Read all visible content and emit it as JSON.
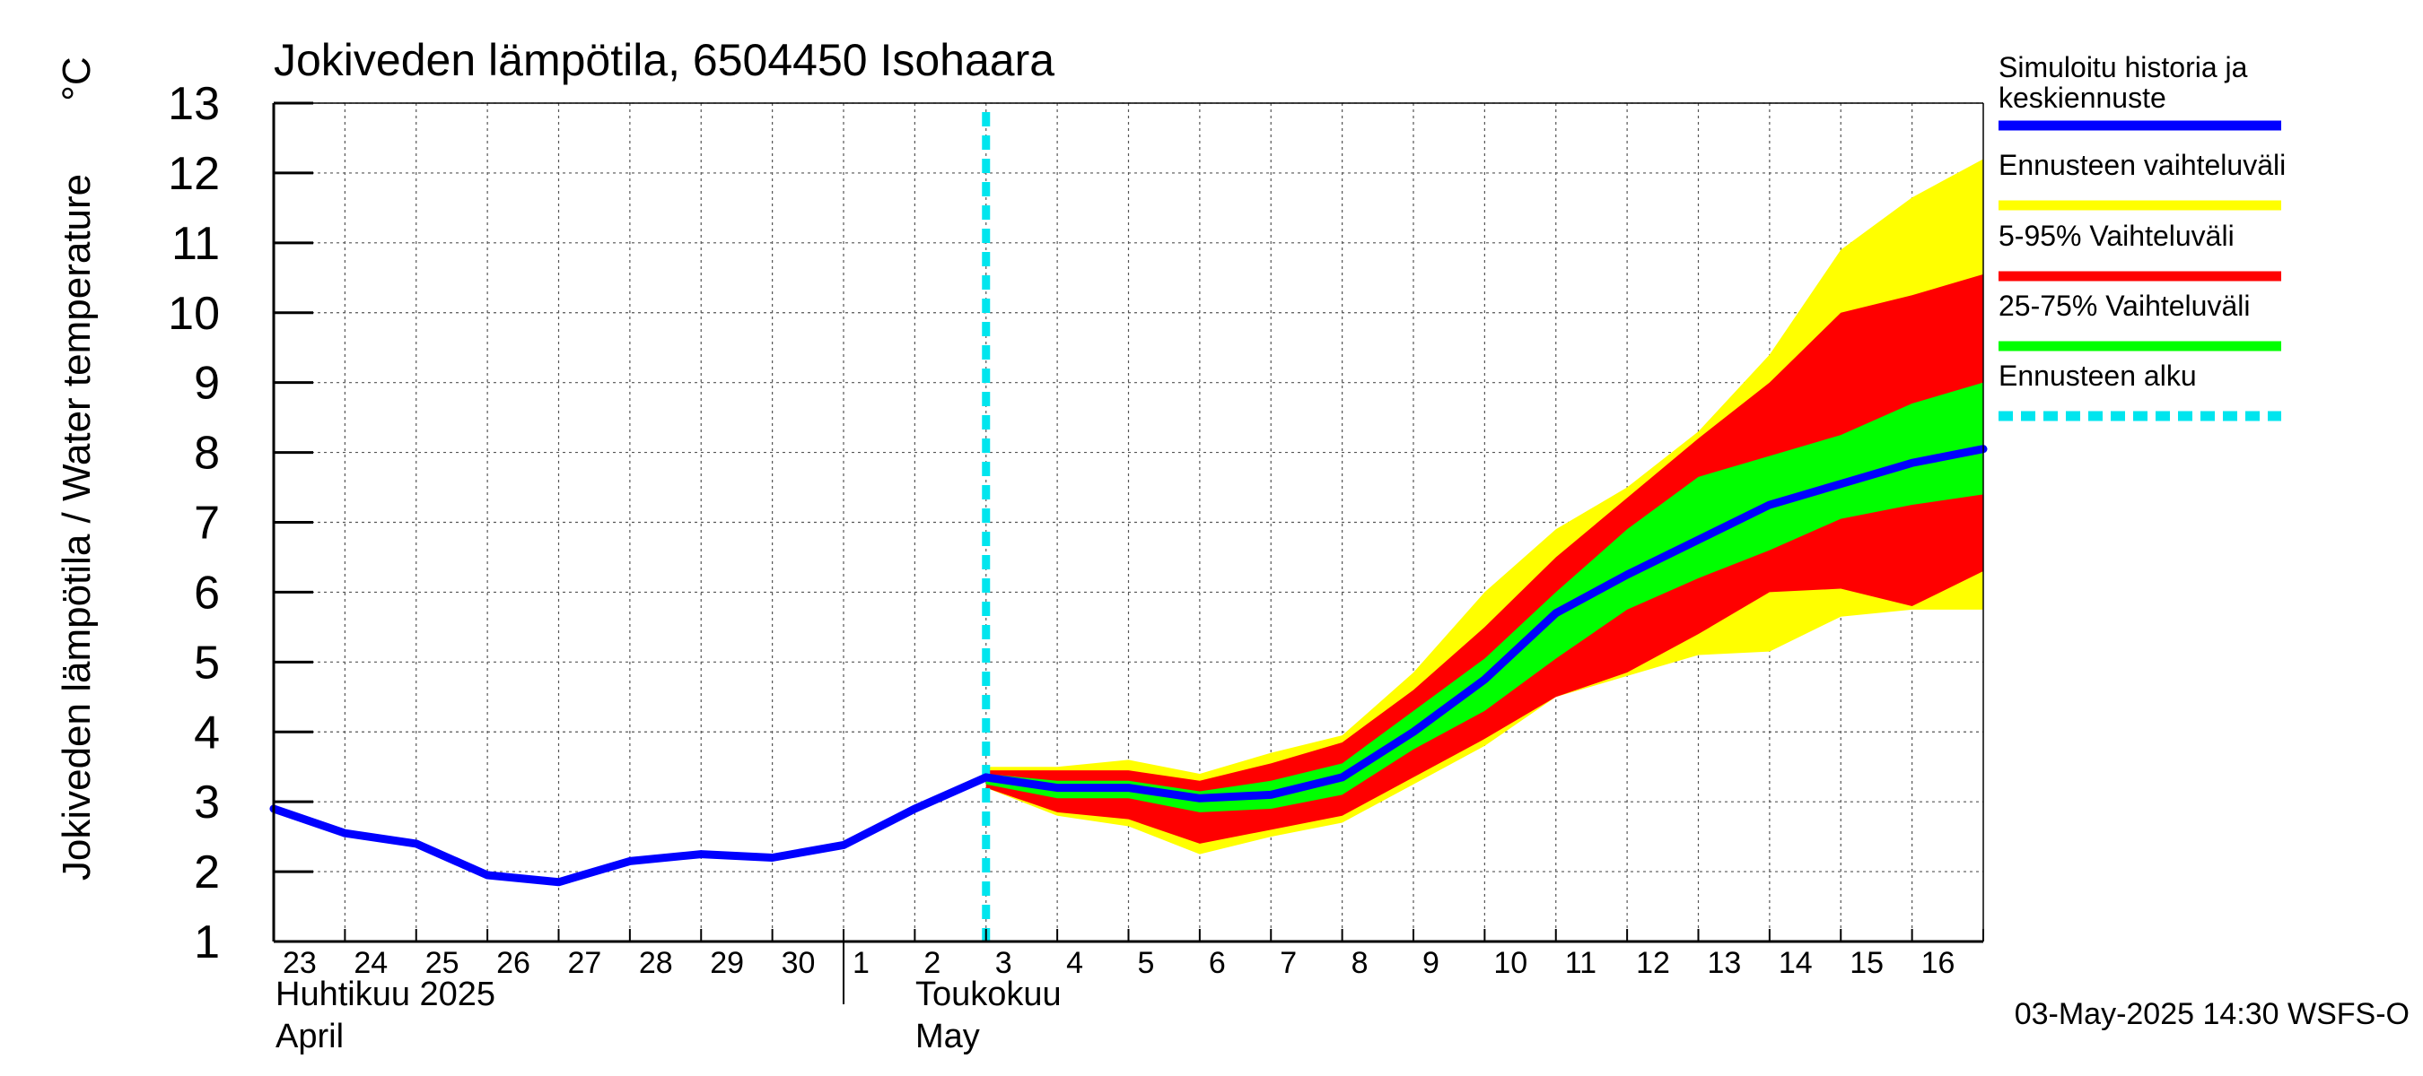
{
  "chart_data": {
    "type": "area",
    "title": "Jokiveden lämpötila, 6504450 Isohaara",
    "ylabel": "Jokiveden lämpötila / Water temperature",
    "yunit": "°C",
    "ylim": [
      1,
      13
    ],
    "yticks": [
      1,
      2,
      3,
      4,
      5,
      6,
      7,
      8,
      9,
      10,
      11,
      12,
      13
    ],
    "grid": true,
    "legend_position": "right",
    "x_day_labels": [
      "23",
      "24",
      "25",
      "26",
      "27",
      "28",
      "29",
      "30",
      "1",
      "2",
      "3",
      "4",
      "5",
      "6",
      "7",
      "8",
      "9",
      "10",
      "11",
      "12",
      "13",
      "14",
      "15",
      "16"
    ],
    "month_labels": [
      {
        "fi": "Huhtikuu  2025",
        "en": "April"
      },
      {
        "fi": "Toukokuu",
        "en": "May"
      }
    ],
    "forecast_start_day": 10,
    "history": {
      "name": "Simuloitu historia ja keskiennuste",
      "x": [
        0,
        1,
        2,
        3,
        4,
        5,
        6,
        7,
        8,
        9,
        10
      ],
      "y": [
        2.9,
        2.55,
        2.4,
        1.95,
        1.85,
        2.15,
        2.25,
        2.2,
        2.38,
        2.9,
        3.35
      ]
    },
    "forecast_x": [
      10,
      11,
      12,
      13,
      14,
      15,
      16,
      17,
      18,
      19,
      20,
      21,
      22,
      23,
      24
    ],
    "median": [
      3.35,
      3.2,
      3.2,
      3.05,
      3.1,
      3.35,
      4.0,
      4.75,
      5.7,
      6.25,
      6.75,
      7.25,
      7.55,
      7.85,
      8.05
    ],
    "range_min": [
      3.2,
      2.8,
      2.65,
      2.25,
      2.5,
      2.7,
      3.25,
      3.8,
      4.5,
      4.8,
      5.1,
      5.15,
      5.65,
      5.75,
      5.75
    ],
    "range_max": [
      3.5,
      3.5,
      3.6,
      3.4,
      3.7,
      3.95,
      4.85,
      6.0,
      6.9,
      7.5,
      8.3,
      9.4,
      10.9,
      11.65,
      12.2
    ],
    "p5": [
      3.2,
      2.85,
      2.75,
      2.4,
      2.6,
      2.8,
      3.35,
      3.9,
      4.5,
      4.85,
      5.4,
      6.0,
      6.05,
      5.8,
      6.3
    ],
    "p95": [
      3.45,
      3.45,
      3.45,
      3.3,
      3.55,
      3.85,
      4.6,
      5.5,
      6.5,
      7.35,
      8.2,
      9.0,
      10.0,
      10.25,
      10.55
    ],
    "p25": [
      3.25,
      3.05,
      3.05,
      2.85,
      2.9,
      3.1,
      3.75,
      4.3,
      5.05,
      5.75,
      6.2,
      6.6,
      7.05,
      7.25,
      7.4
    ],
    "p75": [
      3.4,
      3.3,
      3.3,
      3.15,
      3.3,
      3.55,
      4.3,
      5.05,
      6.0,
      6.9,
      7.65,
      7.95,
      8.25,
      8.7,
      9.0
    ],
    "legend": [
      {
        "label": "Simuloitu historia ja keskiennuste",
        "color": "#0000ff",
        "style": "line"
      },
      {
        "label": "Ennusteen vaihteluväli",
        "color": "#ffff00",
        "style": "band"
      },
      {
        "label": "5-95% Vaihteluväli",
        "color": "#ff0000",
        "style": "band"
      },
      {
        "label": "25-75% Vaihteluväli",
        "color": "#00ff00",
        "style": "band"
      },
      {
        "label": "Ennusteen alku",
        "color": "#00e5ee",
        "style": "dashed"
      }
    ],
    "footer": "03-May-2025 14:30 WSFS-O"
  }
}
